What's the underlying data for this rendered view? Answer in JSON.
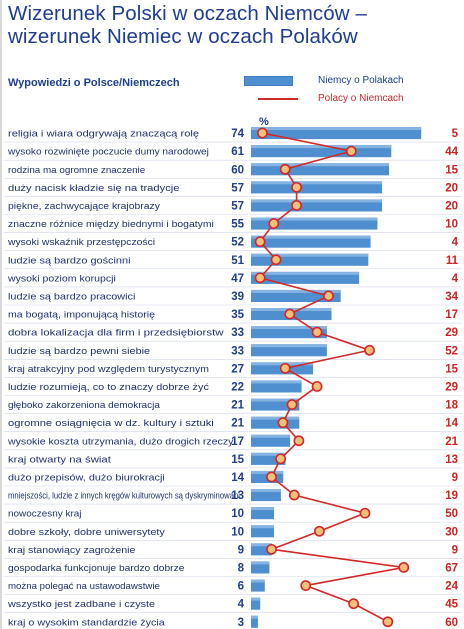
{
  "page": {
    "title_line1": "Wizerunek Polski w oczach Niemców –",
    "title_line2": "wizerunek Niemiec w oczach Polaków",
    "subtitle": "Wypowiedzi o Polsce/Niemczech",
    "percent_label": "%"
  },
  "legend": {
    "series1": "Niemcy o Polakach",
    "series2": "Polacy o Niemcach"
  },
  "colors": {
    "title": "#1f3d8f",
    "bar": "#4f8fcf",
    "bar_light": "#aacbee",
    "line": "#d22828",
    "marker_fill": "#f3c07a",
    "row_divider": "#cfd8ea"
  },
  "chart_data": {
    "type": "bar",
    "title": "Wizerunek Polski w oczach Niemców – wizerunek Niemiec w oczach Polaków",
    "ylabel": "%",
    "categories": [
      "religia i wiara odgrywają znaczącą rolę",
      "wysoko rozwinięte poczucie dumy narodowej",
      "rodzina ma ogromne znaczenie",
      "duży nacisk kładzie się na tradycje",
      "piękne, zachwycające krajobrazy",
      "znaczne różnice między biednymi i bogatymi",
      "wysoki wskaźnik przestępczości",
      "ludzie są bardzo gościnni",
      "wysoki poziom korupcji",
      "ludzie są bardzo pracowici",
      "ma bogatą, imponującą historię",
      "dobra lokalizacja dla firm i przedsiębiorstw",
      "ludzie są bardzo pewni siebie",
      "kraj atrakcyjny pod względem turystycznym",
      "ludzie rozumieją, co to znaczy dobrze żyć",
      "głęboko zakorzeniona demokracja",
      "ogromne osiągnięcia w dz. kultury i sztuki",
      "wysokie koszta utrzymania, dużo drogich rzeczy",
      "kraj otwarty na świat",
      "dużo przepisów, dużo biurokracji",
      "mniejszości, ludzie z innych kręgów kulturowych są dyskryminowani",
      "nowoczesny kraj",
      "dobre szkoły, dobre uniwersytety",
      "kraj stanowiący zagrożenie",
      "gospodarka funkcjonuje bardzo dobrze",
      "można polegać na ustawodawstwie",
      "wszystko jest zadbane i czyste",
      "kraj o wysokim standardzie życia"
    ],
    "series": [
      {
        "name": "Niemcy o Polakach",
        "values": [
          74,
          61,
          60,
          57,
          57,
          55,
          52,
          51,
          47,
          39,
          35,
          33,
          33,
          27,
          22,
          21,
          21,
          17,
          15,
          14,
          13,
          10,
          10,
          9,
          8,
          6,
          4,
          3
        ]
      },
      {
        "name": "Polacy o Niemcach",
        "values": [
          5,
          44,
          15,
          20,
          20,
          10,
          4,
          11,
          4,
          34,
          17,
          29,
          52,
          15,
          29,
          18,
          14,
          21,
          13,
          9,
          19,
          50,
          30,
          9,
          67,
          24,
          45,
          60
        ]
      }
    ],
    "xlim": [
      0,
      80
    ],
    "grid": false,
    "legend": "top-right"
  }
}
